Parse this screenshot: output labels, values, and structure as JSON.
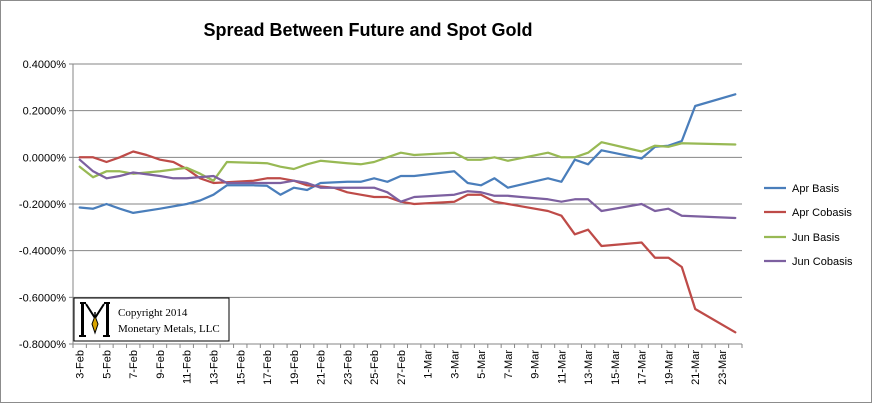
{
  "chart_data": {
    "type": "line",
    "title": "Spread Between Future and Spot Gold",
    "xlabel": "",
    "ylabel": "",
    "ylim": [
      -0.008,
      0.004
    ],
    "yticks": [
      0.004,
      0.002,
      0.0,
      -0.002,
      -0.004,
      -0.006,
      -0.008
    ],
    "ytick_labels": [
      "0.4000%",
      "0.2000%",
      "0.0000%",
      "-0.2000%",
      "-0.4000%",
      "-0.6000%",
      "-0.8000%"
    ],
    "x": [
      "3-Feb",
      "4-Feb",
      "5-Feb",
      "6-Feb",
      "7-Feb",
      "8-Feb",
      "9-Feb",
      "10-Feb",
      "11-Feb",
      "12-Feb",
      "13-Feb",
      "14-Feb",
      "15-Feb",
      "16-Feb",
      "17-Feb",
      "18-Feb",
      "19-Feb",
      "20-Feb",
      "21-Feb",
      "22-Feb",
      "23-Feb",
      "24-Feb",
      "25-Feb",
      "26-Feb",
      "27-Feb",
      "28-Feb",
      "1-Mar",
      "2-Mar",
      "3-Mar",
      "4-Mar",
      "5-Mar",
      "6-Mar",
      "7-Mar",
      "8-Mar",
      "9-Mar",
      "10-Mar",
      "11-Mar",
      "12-Mar",
      "13-Mar",
      "14-Mar",
      "15-Mar",
      "16-Mar",
      "17-Mar",
      "18-Mar",
      "19-Mar",
      "20-Mar",
      "21-Mar",
      "22-Mar",
      "23-Mar",
      "24-Mar"
    ],
    "xtick_labels": [
      "3-Feb",
      "5-Feb",
      "7-Feb",
      "9-Feb",
      "11-Feb",
      "13-Feb",
      "15-Feb",
      "17-Feb",
      "19-Feb",
      "21-Feb",
      "23-Feb",
      "25-Feb",
      "27-Feb",
      "1-Mar",
      "3-Mar",
      "5-Mar",
      "7-Mar",
      "9-Mar",
      "11-Mar",
      "13-Mar",
      "15-Mar",
      "17-Mar",
      "19-Mar",
      "21-Mar",
      "23-Mar"
    ],
    "grid": "horizontal",
    "legend": "right",
    "series": [
      {
        "name": "Apr Basis",
        "color": "#4a7ebb",
        "points": [
          [
            0,
            -0.00215
          ],
          [
            1,
            -0.0022
          ],
          [
            2,
            -0.002
          ],
          [
            3,
            -0.0022
          ],
          [
            4,
            -0.00238
          ],
          [
            6,
            -0.0022
          ],
          [
            8,
            -0.002
          ],
          [
            9,
            -0.00185
          ],
          [
            10,
            -0.0016
          ],
          [
            11,
            -0.0012
          ],
          [
            13,
            -0.0012
          ],
          [
            14,
            -0.00122
          ],
          [
            15,
            -0.0016
          ],
          [
            16,
            -0.0013
          ],
          [
            17,
            -0.0014
          ],
          [
            18,
            -0.0011
          ],
          [
            20,
            -0.00105
          ],
          [
            21,
            -0.00105
          ],
          [
            22,
            -0.0009
          ],
          [
            23,
            -0.00105
          ],
          [
            24,
            -0.0008
          ],
          [
            25,
            -0.0008
          ],
          [
            28,
            -0.0006
          ],
          [
            29,
            -0.0011
          ],
          [
            30,
            -0.0012
          ],
          [
            31,
            -0.0009
          ],
          [
            32,
            -0.0013
          ],
          [
            35,
            -0.0009
          ],
          [
            36,
            -0.00105
          ],
          [
            37,
            -0.0001
          ],
          [
            38,
            -0.0003
          ],
          [
            39,
            0.0003
          ],
          [
            42,
            -5e-05
          ],
          [
            43,
            0.00045
          ],
          [
            44,
            0.0005
          ],
          [
            45,
            0.0007
          ],
          [
            46,
            0.0022
          ],
          [
            49,
            0.0027
          ]
        ]
      },
      {
        "name": "Apr Cobasis",
        "color": "#be4b48",
        "points": [
          [
            0,
            0.0
          ],
          [
            1,
            0.0
          ],
          [
            2,
            -0.0002
          ],
          [
            3,
            0.0
          ],
          [
            4,
            0.00025
          ],
          [
            5,
            0.0001
          ],
          [
            6,
            -0.0001
          ],
          [
            7,
            -0.0002
          ],
          [
            8,
            -0.0005
          ],
          [
            9,
            -0.0009
          ],
          [
            10,
            -0.0011
          ],
          [
            13,
            -0.001
          ],
          [
            14,
            -0.0009
          ],
          [
            15,
            -0.0009
          ],
          [
            16,
            -0.001
          ],
          [
            17,
            -0.0012
          ],
          [
            19,
            -0.0013
          ],
          [
            20,
            -0.0015
          ],
          [
            21,
            -0.0016
          ],
          [
            22,
            -0.0017
          ],
          [
            23,
            -0.0017
          ],
          [
            24,
            -0.0019
          ],
          [
            25,
            -0.002
          ],
          [
            28,
            -0.0019
          ],
          [
            29,
            -0.0016
          ],
          [
            30,
            -0.0016
          ],
          [
            31,
            -0.0019
          ],
          [
            32,
            -0.002
          ],
          [
            33,
            -0.0021
          ],
          [
            35,
            -0.0023
          ],
          [
            36,
            -0.0025
          ],
          [
            37,
            -0.0033
          ],
          [
            38,
            -0.0031
          ],
          [
            39,
            -0.0038
          ],
          [
            42,
            -0.00365
          ],
          [
            43,
            -0.0043
          ],
          [
            44,
            -0.0043
          ],
          [
            45,
            -0.0047
          ],
          [
            46,
            -0.0065
          ],
          [
            49,
            -0.0075
          ]
        ]
      },
      {
        "name": "Jun Basis",
        "color": "#98b954",
        "points": [
          [
            0,
            -0.0004
          ],
          [
            1,
            -0.00085
          ],
          [
            2,
            -0.0006
          ],
          [
            3,
            -0.0006
          ],
          [
            4,
            -0.0007
          ],
          [
            6,
            -0.0006
          ],
          [
            8,
            -0.00045
          ],
          [
            9,
            -0.0007
          ],
          [
            10,
            -0.001
          ],
          [
            11,
            -0.0002
          ],
          [
            14,
            -0.00025
          ],
          [
            15,
            -0.0004
          ],
          [
            16,
            -0.0005
          ],
          [
            17,
            -0.0003
          ],
          [
            18,
            -0.00015
          ],
          [
            20,
            -0.00025
          ],
          [
            21,
            -0.0003
          ],
          [
            22,
            -0.0002
          ],
          [
            23,
            0.0
          ],
          [
            24,
            0.0002
          ],
          [
            25,
            0.0001
          ],
          [
            28,
            0.0002
          ],
          [
            29,
            -0.0001
          ],
          [
            30,
            -0.0001
          ],
          [
            31,
            0.0
          ],
          [
            32,
            -0.00015
          ],
          [
            35,
            0.0002
          ],
          [
            36,
            0.0
          ],
          [
            37,
            0.0
          ],
          [
            38,
            0.0002
          ],
          [
            39,
            0.00065
          ],
          [
            42,
            0.00025
          ],
          [
            43,
            0.0005
          ],
          [
            44,
            0.00045
          ],
          [
            45,
            0.0006
          ],
          [
            49,
            0.00055
          ]
        ]
      },
      {
        "name": "Jun Cobasis",
        "color": "#7d60a0",
        "points": [
          [
            0,
            -0.0001
          ],
          [
            1,
            -0.0006
          ],
          [
            2,
            -0.0009
          ],
          [
            3,
            -0.0008
          ],
          [
            4,
            -0.00065
          ],
          [
            6,
            -0.0008
          ],
          [
            7,
            -0.0009
          ],
          [
            8,
            -0.0009
          ],
          [
            10,
            -0.0008
          ],
          [
            11,
            -0.0011
          ],
          [
            13,
            -0.0011
          ],
          [
            14,
            -0.0011
          ],
          [
            15,
            -0.0011
          ],
          [
            16,
            -0.001
          ],
          [
            17,
            -0.0011
          ],
          [
            18,
            -0.0013
          ],
          [
            19,
            -0.0013
          ],
          [
            20,
            -0.0013
          ],
          [
            21,
            -0.0013
          ],
          [
            22,
            -0.0013
          ],
          [
            23,
            -0.0015
          ],
          [
            24,
            -0.0019
          ],
          [
            25,
            -0.0017
          ],
          [
            28,
            -0.0016
          ],
          [
            29,
            -0.00145
          ],
          [
            30,
            -0.0015
          ],
          [
            31,
            -0.00165
          ],
          [
            32,
            -0.00165
          ],
          [
            33,
            -0.0017
          ],
          [
            35,
            -0.0018
          ],
          [
            36,
            -0.0019
          ],
          [
            37,
            -0.0018
          ],
          [
            38,
            -0.0018
          ],
          [
            39,
            -0.0023
          ],
          [
            42,
            -0.002
          ],
          [
            43,
            -0.0023
          ],
          [
            44,
            -0.0022
          ],
          [
            45,
            -0.0025
          ],
          [
            49,
            -0.0026
          ]
        ]
      }
    ]
  },
  "watermark": {
    "line1": "Copyright 2014",
    "line2": "Monetary Metals, LLC"
  }
}
